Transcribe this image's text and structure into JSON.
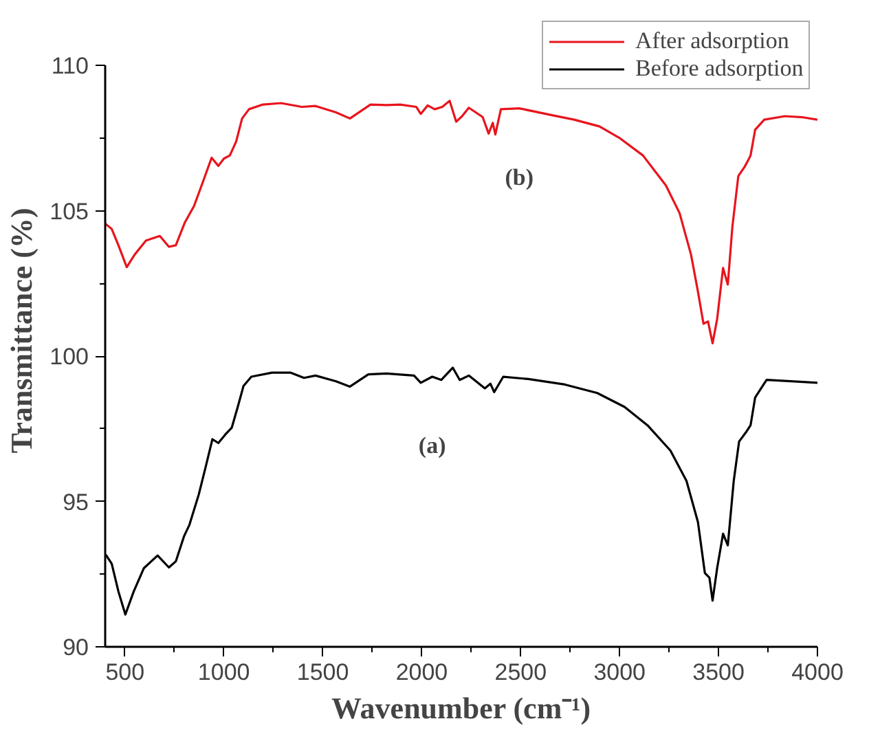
{
  "chart_data": {
    "type": "line",
    "xlabel": "Wavenumber (cm⁻¹)",
    "ylabel": "Transmittance (%)",
    "xlim": [
      400,
      4000
    ],
    "ylim": [
      90,
      110
    ],
    "xticks": [
      500,
      {
        "value": 750,
        "label": null
      },
      1000,
      {
        "value": 1250,
        "label": null
      },
      1500,
      {
        "value": 1750,
        "label": null
      },
      2000,
      {
        "value": 2250,
        "label": null
      },
      2500,
      {
        "value": 2750,
        "label": null
      },
      3000,
      {
        "value": 3250,
        "label": null
      },
      3500,
      {
        "value": 3750,
        "label": null
      },
      4000
    ],
    "yticks": [
      90,
      {
        "value": 92.5,
        "label": null
      },
      95,
      {
        "value": 97.5,
        "label": null
      },
      100,
      {
        "value": 102.5,
        "label": null
      },
      105,
      {
        "value": 107.5,
        "label": null
      },
      110
    ],
    "grid": false,
    "legend": "top right",
    "line_style": "solid",
    "marker": "none",
    "annotations": [
      {
        "text": "(b)",
        "x": 2493,
        "y": 108.52
      },
      {
        "text": "(a)",
        "x": 2053,
        "y": 99.29
      }
    ],
    "series": [
      {
        "name": "After adsorption",
        "color": "#e8141c",
        "x": [
          400,
          433,
          467,
          509,
          549,
          606,
          676,
          722,
          757,
          803,
          849,
          896,
          938,
          972,
          1000,
          1030,
          1062,
          1092,
          1127,
          1197,
          1289,
          1394,
          1463,
          1567,
          1637,
          1741,
          1822,
          1891,
          1972,
          1995,
          2030,
          2065,
          2104,
          2141,
          2174,
          2204,
          2238,
          2308,
          2338,
          2359,
          2372,
          2400,
          2493,
          2655,
          2771,
          2898,
          3002,
          3118,
          3234,
          3303,
          3361,
          3396,
          3424,
          3447,
          3470,
          3493,
          3523,
          3547,
          3570,
          3600,
          3632,
          3651,
          3662,
          3685,
          3731,
          3835,
          3928,
          4000
        ],
        "values": [
          104.56,
          104.37,
          103.81,
          103.06,
          103.49,
          103.97,
          104.13,
          103.76,
          103.81,
          104.6,
          105.16,
          106.03,
          106.82,
          106.54,
          106.79,
          106.9,
          107.38,
          108.17,
          108.49,
          108.65,
          108.7,
          108.57,
          108.6,
          108.38,
          108.17,
          108.65,
          108.63,
          108.65,
          108.57,
          108.33,
          108.62,
          108.49,
          108.57,
          108.78,
          108.06,
          108.25,
          108.54,
          108.22,
          107.65,
          108.02,
          107.62,
          108.49,
          108.52,
          108.29,
          108.13,
          107.9,
          107.49,
          106.9,
          105.87,
          104.92,
          103.49,
          102.22,
          101.11,
          101.19,
          100.44,
          101.27,
          103.03,
          102.46,
          104.44,
          106.19,
          106.51,
          106.75,
          106.9,
          107.78,
          108.13,
          108.25,
          108.21,
          108.13
        ]
      },
      {
        "name": "Before adsorption",
        "color": "#000000",
        "x": [
          403,
          433,
          467,
          502,
          544,
          595,
          665,
          722,
          757,
          799,
          826,
          873,
          908,
          942,
          972,
          1007,
          1040,
          1070,
          1099,
          1139,
          1243,
          1336,
          1405,
          1463,
          1567,
          1637,
          1730,
          1822,
          1961,
          1995,
          2053,
          2099,
          2157,
          2192,
          2238,
          2319,
          2347,
          2366,
          2412,
          2539,
          2724,
          2887,
          3025,
          3141,
          3257,
          3338,
          3396,
          3431,
          3454,
          3470,
          3493,
          3523,
          3547,
          3577,
          3604,
          3639,
          3662,
          3685,
          3743,
          3882,
          4000
        ],
        "values": [
          93.17,
          92.86,
          91.9,
          91.11,
          91.9,
          92.7,
          93.14,
          92.73,
          92.94,
          93.81,
          94.2,
          95.24,
          96.19,
          97.14,
          97.01,
          97.3,
          97.54,
          98.25,
          98.97,
          99.29,
          99.43,
          99.43,
          99.25,
          99.33,
          99.13,
          98.95,
          99.37,
          99.4,
          99.33,
          99.08,
          99.29,
          99.18,
          99.6,
          99.18,
          99.33,
          98.89,
          99.05,
          98.76,
          99.29,
          99.21,
          99.02,
          98.73,
          98.25,
          97.62,
          96.75,
          95.71,
          94.29,
          92.54,
          92.38,
          91.59,
          92.7,
          93.89,
          93.49,
          95.71,
          97.06,
          97.38,
          97.62,
          98.57,
          99.18,
          99.13,
          99.08
        ]
      }
    ]
  }
}
